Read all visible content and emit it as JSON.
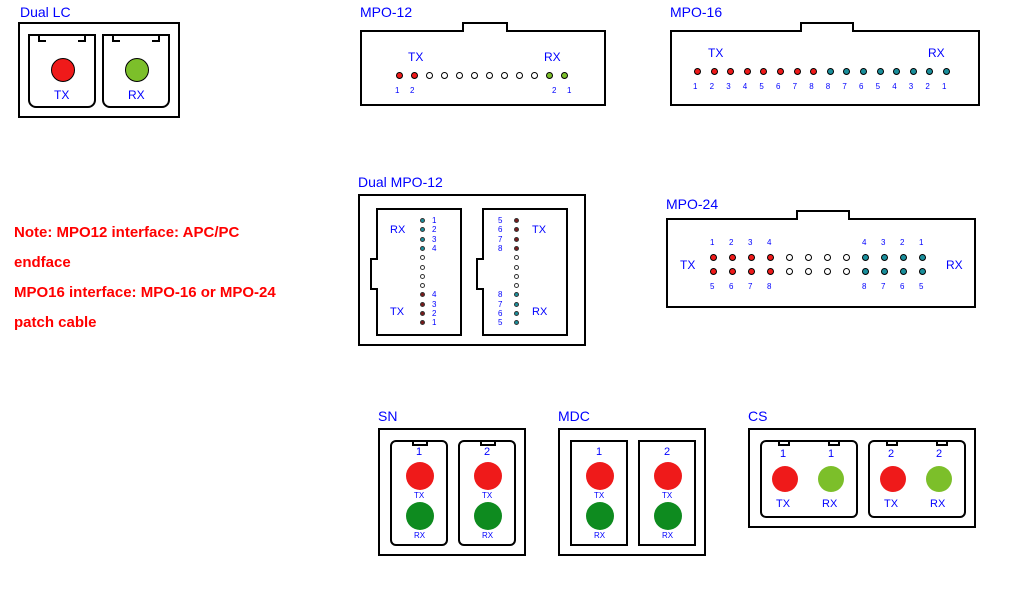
{
  "colors": {
    "red": "#ef1a1a",
    "green": "#7cbf2a",
    "darkgreen": "#0e8b1f",
    "white": "#ffffff",
    "teal": "#1a8f9c",
    "maroon": "#7a1a1a",
    "blue": "#0000ff",
    "black": "#000000"
  },
  "dual_lc": {
    "title": "Dual LC",
    "tx": "TX",
    "rx": "RX"
  },
  "mpo12": {
    "title": "MPO-12",
    "tx": "TX",
    "rx": "RX",
    "left_nums": [
      "1",
      "2"
    ],
    "right_nums": [
      "2",
      "1"
    ],
    "fiber_count": 12,
    "tx_colored_count": 2,
    "rx_colored_count": 2
  },
  "mpo16": {
    "title": "MPO-16",
    "tx": "TX",
    "rx": "RX",
    "nums_left": [
      "1",
      "2",
      "3",
      "4",
      "5",
      "6",
      "7",
      "8"
    ],
    "nums_right": [
      "8",
      "7",
      "6",
      "5",
      "4",
      "3",
      "2",
      "1"
    ],
    "fiber_count": 16
  },
  "dual_mpo12": {
    "title": "Dual MPO-12",
    "tx": "TX",
    "rx": "RX",
    "left_top_nums": [
      "1",
      "2",
      "3",
      "4"
    ],
    "left_bot_nums": [
      "4",
      "3",
      "2",
      "1"
    ],
    "right_top_nums": [
      "5",
      "6",
      "7",
      "8"
    ],
    "right_bot_nums": [
      "8",
      "7",
      "6",
      "5"
    ]
  },
  "mpo24": {
    "title": "MPO-24",
    "tx": "TX",
    "rx": "RX",
    "top_left_nums": [
      "1",
      "2",
      "3",
      "4"
    ],
    "top_right_nums": [
      "4",
      "3",
      "2",
      "1"
    ],
    "bot_left_nums": [
      "5",
      "6",
      "7",
      "8"
    ],
    "bot_right_nums": [
      "8",
      "7",
      "6",
      "5"
    ]
  },
  "sn": {
    "title": "SN",
    "n1": "1",
    "n2": "2",
    "tx": "TX",
    "rx": "RX"
  },
  "mdc": {
    "title": "MDC",
    "n1": "1",
    "n2": "2",
    "tx": "TX",
    "rx": "RX"
  },
  "cs": {
    "title": "CS",
    "n1": "1",
    "n2": "2",
    "tx": "TX",
    "rx": "RX"
  },
  "note": {
    "l1": "Note: MPO12 interface: APC/PC",
    "l2": "endface",
    "l3": "MPO16 interface: MPO-16 or MPO-24",
    "l4": "patch cable"
  }
}
